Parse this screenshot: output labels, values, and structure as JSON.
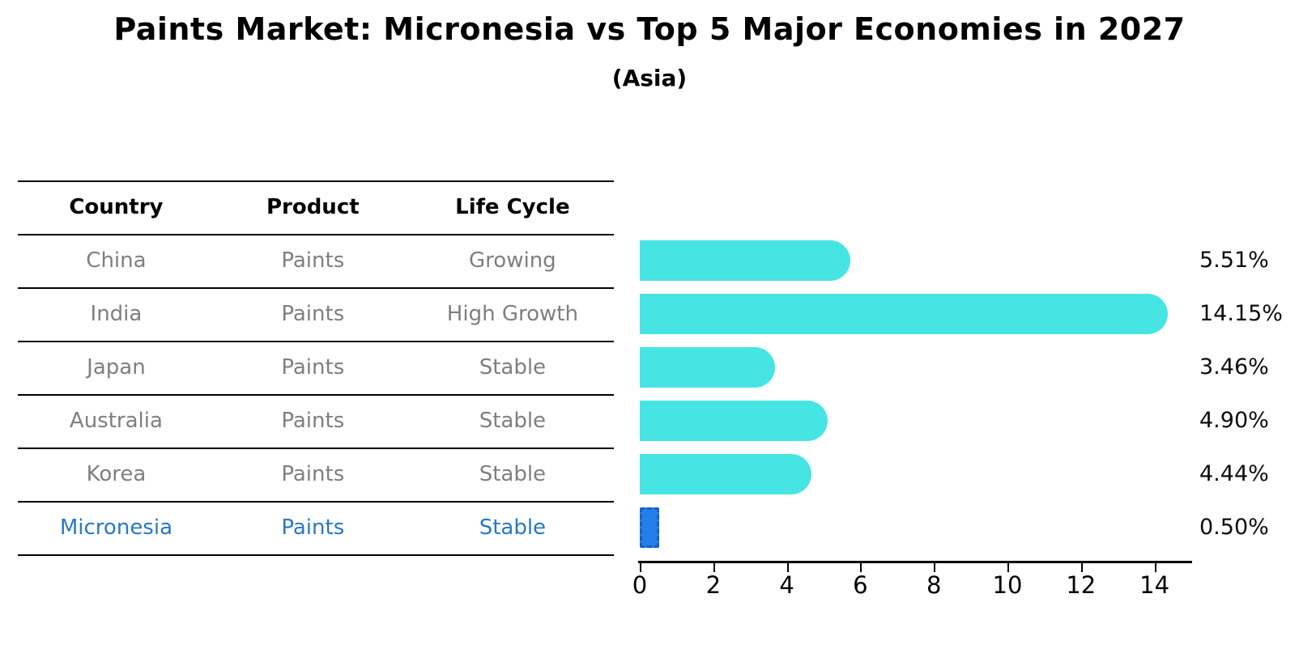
{
  "title": "Paints Market: Micronesia vs Top 5 Major Economies in 2027",
  "subtitle": "(Asia)",
  "table": {
    "headers": [
      "Country",
      "Product",
      "Life Cycle"
    ],
    "rows": [
      {
        "country": "China",
        "product": "Paints",
        "life_cycle": "Growing",
        "highlight": false
      },
      {
        "country": "India",
        "product": "Paints",
        "life_cycle": "High Growth",
        "highlight": false
      },
      {
        "country": "Japan",
        "product": "Paints",
        "life_cycle": "Stable",
        "highlight": false
      },
      {
        "country": "Australia",
        "product": "Paints",
        "life_cycle": "Stable",
        "highlight": false
      },
      {
        "country": "Korea",
        "product": "Paints",
        "life_cycle": "Stable",
        "highlight": false
      },
      {
        "country": "Micronesia",
        "product": "Paints",
        "life_cycle": "Stable",
        "highlight": true
      }
    ]
  },
  "chart_data": {
    "type": "bar",
    "orientation": "horizontal",
    "title": "Paints Market: Micronesia vs Top 5 Major Economies in 2027",
    "subtitle": "(Asia)",
    "categories": [
      "China",
      "India",
      "Japan",
      "Australia",
      "Korea",
      "Micronesia"
    ],
    "values": [
      5.51,
      14.15,
      3.46,
      4.9,
      4.44,
      0.5
    ],
    "value_labels": [
      "5.51%",
      "14.15%",
      "3.46%",
      "4.90%",
      "4.44%",
      "0.50%"
    ],
    "highlight_index": 5,
    "xlim": [
      0,
      15
    ],
    "xticks": [
      0,
      2,
      4,
      6,
      8,
      10,
      12,
      14
    ],
    "xtick_labels": [
      "0",
      "2",
      "4",
      "6",
      "8",
      "10",
      "12",
      "14"
    ],
    "grid": false,
    "legend": false
  },
  "colors": {
    "bar": "#46E5E4",
    "highlight_bar": "#2480E8",
    "highlight_bar_border": "#1560C8",
    "highlight_text": "#2878C8",
    "row_text": "#7f7f7f",
    "header_text": "#000000",
    "axis": "#000000"
  }
}
